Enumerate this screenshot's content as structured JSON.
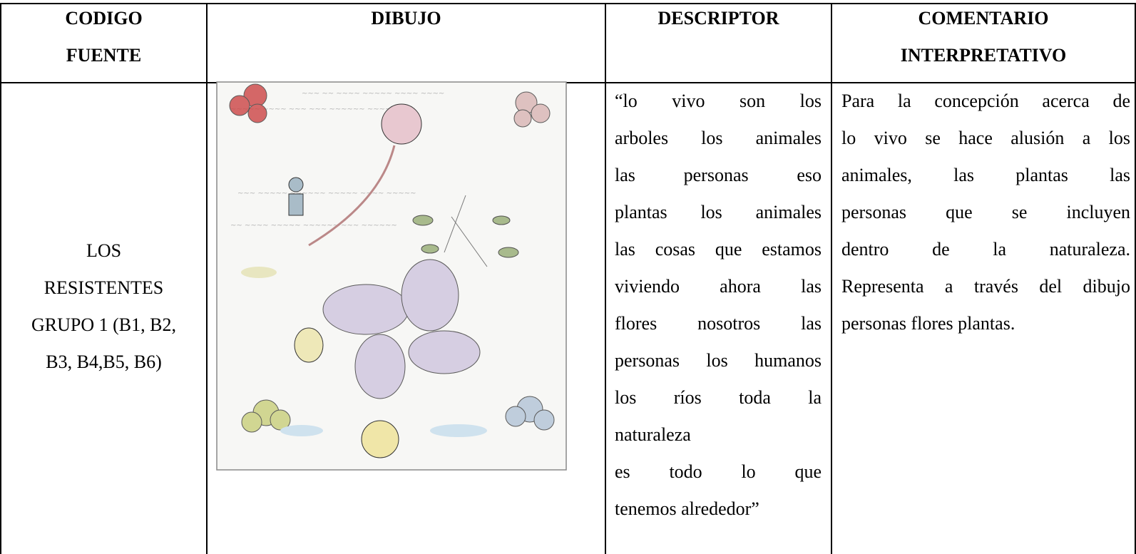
{
  "table": {
    "header": [
      [
        "CODIGO",
        "FUENTE"
      ],
      [
        "DIBUJO"
      ],
      [
        "DESCRIPTOR"
      ],
      [
        "COMENTARIO",
        "INTERPRETATIVO"
      ]
    ],
    "rows": [
      {
        "code": [
          "LOS",
          "RESISTENTES",
          "GRUPO 1 (B1, B2,",
          "B3, B4,B5, B6)"
        ],
        "descriptor": [
          "“lo vivo son los",
          "arboles los animales",
          "las personas eso",
          "plantas los animales",
          "las cosas que estamos",
          "viviendo ahora las",
          "flores nosotros las",
          "personas los humanos",
          "los ríos toda la",
          "naturaleza",
          "es todo lo que",
          "tenemos alrededor”"
        ],
        "comment": [
          "Para la concepción acerca de",
          "lo vivo se hace alusión a los",
          "animales, las plantas las",
          "personas que se incluyen",
          "dentro de la naturaleza.",
          "Representa a través del dibujo",
          "personas flores plantas."
        ]
      }
    ]
  }
}
